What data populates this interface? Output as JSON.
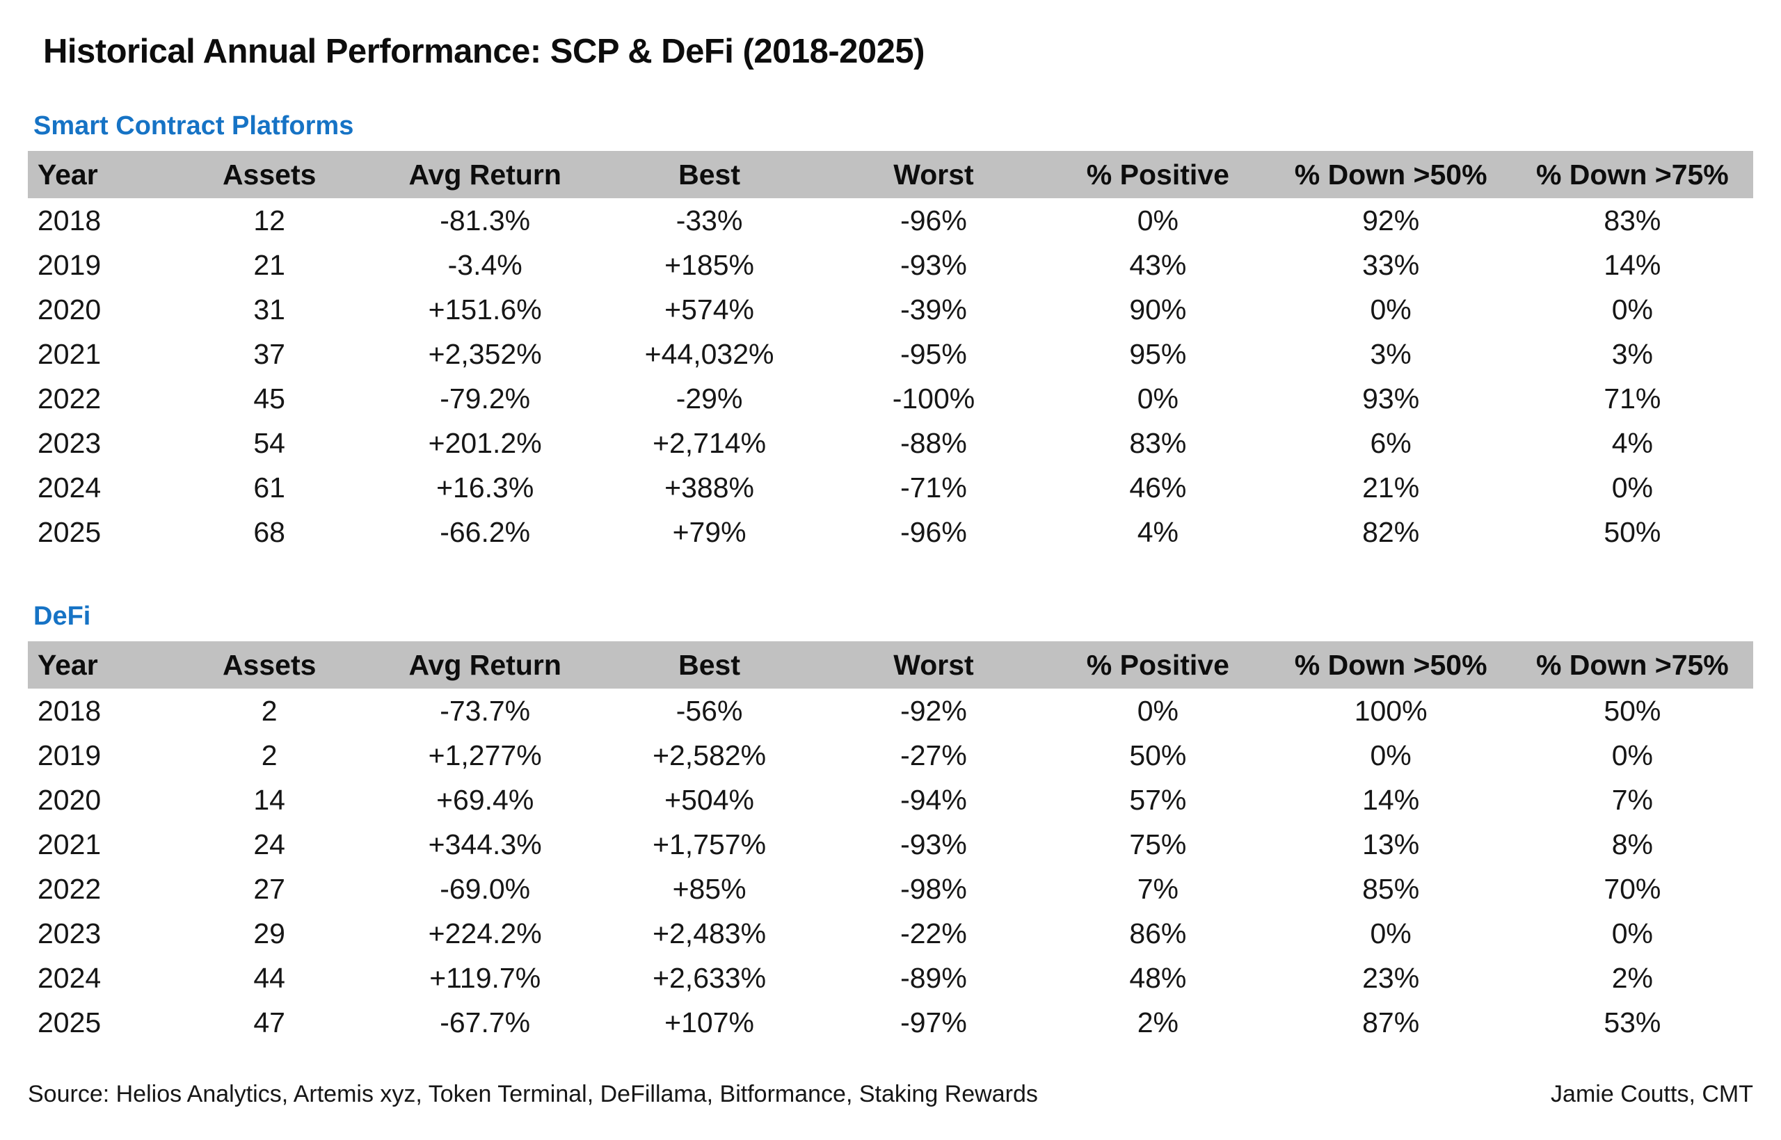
{
  "title": "Historical Annual Performance: SCP & DeFi (2018-2025)",
  "colors": {
    "accent": "#1673c5",
    "negative": "#ef2b33",
    "positive": "#149a48",
    "band": "#c1c1c1",
    "text": "#111111"
  },
  "chart_data": [
    {
      "type": "table",
      "title": "Smart Contract Platforms",
      "columns": [
        "Year",
        "Assets",
        "Avg Return",
        "Best",
        "Worst",
        "% Positive",
        "% Down >50%",
        "% Down >75%"
      ],
      "rows": [
        [
          "2018",
          "12",
          "-81.3%",
          "-33%",
          "-96%",
          "0%",
          "92%",
          "83%"
        ],
        [
          "2019",
          "21",
          "-3.4%",
          "+185%",
          "-93%",
          "43%",
          "33%",
          "14%"
        ],
        [
          "2020",
          "31",
          "+151.6%",
          "+574%",
          "-39%",
          "90%",
          "0%",
          "0%"
        ],
        [
          "2021",
          "37",
          "+2,352%",
          "+44,032%",
          "-95%",
          "95%",
          "3%",
          "3%"
        ],
        [
          "2022",
          "45",
          "-79.2%",
          "-29%",
          "-100%",
          "0%",
          "93%",
          "71%"
        ],
        [
          "2023",
          "54",
          "+201.2%",
          "+2,714%",
          "-88%",
          "83%",
          "6%",
          "4%"
        ],
        [
          "2024",
          "61",
          "+16.3%",
          "+388%",
          "-71%",
          "46%",
          "21%",
          "0%"
        ],
        [
          "2025",
          "68",
          "-66.2%",
          "+79%",
          "-96%",
          "4%",
          "82%",
          "50%"
        ]
      ]
    },
    {
      "type": "table",
      "title": "DeFi",
      "columns": [
        "Year",
        "Assets",
        "Avg Return",
        "Best",
        "Worst",
        "% Positive",
        "% Down >50%",
        "% Down >75%"
      ],
      "rows": [
        [
          "2018",
          "2",
          "-73.7%",
          "-56%",
          "-92%",
          "0%",
          "100%",
          "50%"
        ],
        [
          "2019",
          "2",
          "+1,277%",
          "+2,582%",
          "-27%",
          "50%",
          "0%",
          "0%"
        ],
        [
          "2020",
          "14",
          "+69.4%",
          "+504%",
          "-94%",
          "57%",
          "14%",
          "7%"
        ],
        [
          "2021",
          "24",
          "+344.3%",
          "+1,757%",
          "-93%",
          "75%",
          "13%",
          "8%"
        ],
        [
          "2022",
          "27",
          "-69.0%",
          "+85%",
          "-98%",
          "7%",
          "85%",
          "70%"
        ],
        [
          "2023",
          "29",
          "+224.2%",
          "+2,483%",
          "-22%",
          "86%",
          "0%",
          "0%"
        ],
        [
          "2024",
          "44",
          "+119.7%",
          "+2,633%",
          "-89%",
          "48%",
          "23%",
          "2%"
        ],
        [
          "2025",
          "47",
          "-67.7%",
          "+107%",
          "-97%",
          "2%",
          "87%",
          "53%"
        ]
      ]
    }
  ],
  "footer": {
    "source": "Source: Helios Analytics, Artemis xyz, Token Terminal, DeFillama, Bitformance, Staking Rewards",
    "credit": "Jamie Coutts, CMT"
  }
}
